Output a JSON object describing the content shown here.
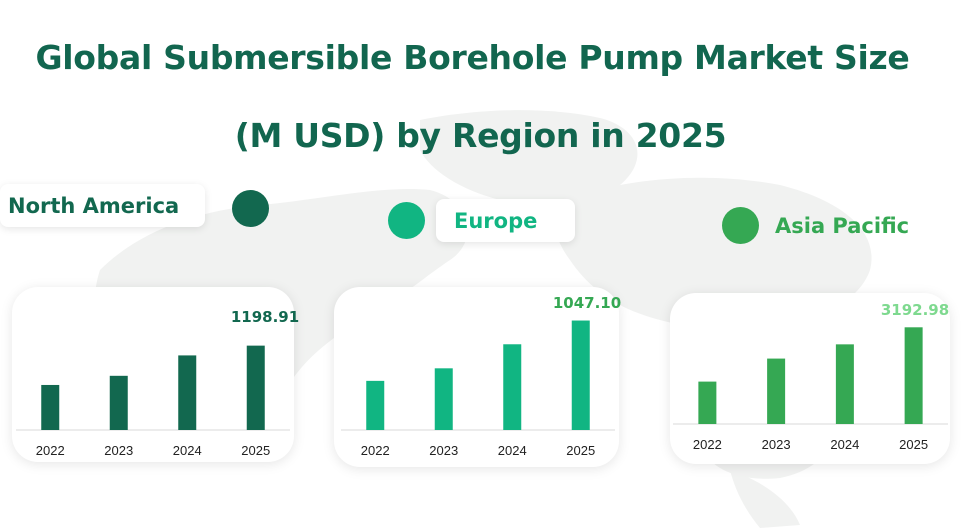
{
  "title": {
    "line1": "Global Submersible Borehole Pump Market Size",
    "line2": "(M USD) by Region in 2025"
  },
  "colors": {
    "title": "#12664f",
    "north_america": "#12684f",
    "europe": "#11b582",
    "asia_pacific": "#35a853",
    "asia_pacific_value": "#7ed98f"
  },
  "regions": [
    {
      "label": "North America",
      "dot_icon": "circle-dot-icon"
    },
    {
      "label": "Europe",
      "dot_icon": "circle-dot-icon"
    },
    {
      "label": "Asia Pacific",
      "dot_icon": "circle-dot-icon"
    }
  ],
  "chart_data": [
    {
      "type": "bar",
      "region": "North America",
      "categories": [
        "2022",
        "2023",
        "2024",
        "2025"
      ],
      "values": [
        640,
        770,
        1060,
        1198.91
      ],
      "value_label": "1198.91",
      "ylim": [
        0,
        1350
      ]
    },
    {
      "type": "bar",
      "region": "Europe",
      "categories": [
        "2022",
        "2023",
        "2024",
        "2025"
      ],
      "values": [
        470,
        590,
        820,
        1047.1
      ],
      "value_label": "1047.10",
      "ylim": [
        0,
        1100
      ]
    },
    {
      "type": "bar",
      "region": "Asia Pacific",
      "categories": [
        "2022",
        "2023",
        "2024",
        "2025"
      ],
      "values": [
        1400,
        2160,
        2630,
        3192.98
      ],
      "value_label": "3192.98",
      "ylim": [
        0,
        3500
      ]
    }
  ]
}
